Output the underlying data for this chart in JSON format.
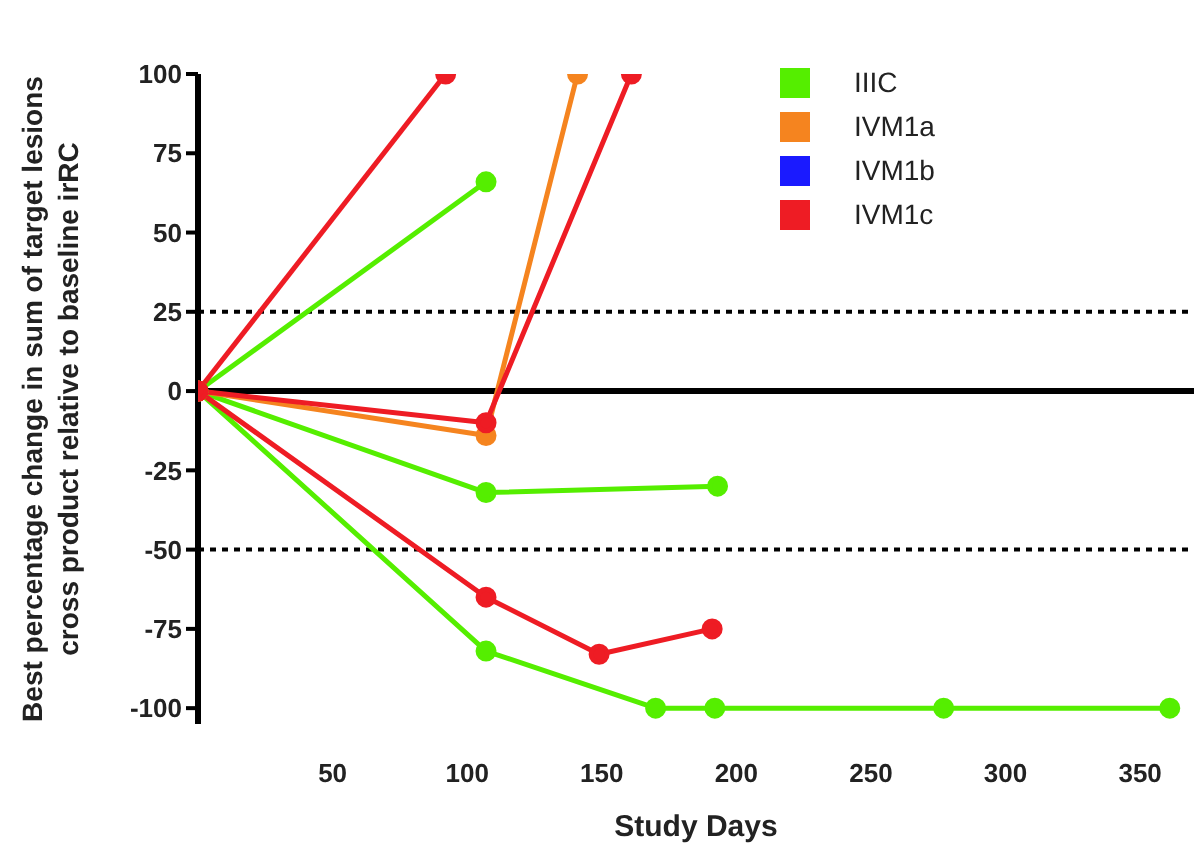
{
  "chart_data": {
    "type": "line",
    "xlabel": "Study Days",
    "ylabel": "Best percentage change in sum of target lesions\ncross product relative to baseline irRC",
    "xlim": [
      0,
      370
    ],
    "xticks": [
      50,
      100,
      150,
      200,
      250,
      300,
      350
    ],
    "ylim": [
      -105,
      100
    ],
    "yticks": [
      -100,
      -75,
      -50,
      -25,
      0,
      25,
      50,
      75,
      100
    ],
    "marker": "circle",
    "legend": "top right",
    "ref_lines": [
      {
        "axis": "y",
        "value": 25,
        "line_style": "dotted",
        "color": "#000000"
      },
      {
        "axis": "y",
        "value": -50,
        "line_style": "dotted",
        "color": "#000000"
      }
    ],
    "series": [
      {
        "name": "IIIC",
        "color": "#55ee00",
        "x": [
          0,
          107
        ],
        "values": [
          0,
          66
        ]
      },
      {
        "color": "#55ee00",
        "x": [
          0,
          107,
          193
        ],
        "values": [
          0,
          -32,
          -30
        ]
      },
      {
        "color": "#55ee00",
        "x": [
          0,
          107,
          170,
          192,
          277,
          361
        ],
        "values": [
          0,
          -82,
          -100,
          -100,
          -100,
          -100
        ]
      },
      {
        "name": "IVM1a",
        "color": "#f5841f",
        "x": [
          0,
          107,
          141
        ],
        "values": [
          0,
          -14,
          100
        ]
      },
      {
        "name": "IVM1b",
        "color": "#1a1aff"
      },
      {
        "name": "IVM1c",
        "color": "#ee1c24",
        "x": [
          0,
          92
        ],
        "values": [
          0,
          100
        ]
      },
      {
        "color": "#ee1c24",
        "x": [
          0,
          107,
          161
        ],
        "values": [
          0,
          -10,
          100
        ]
      },
      {
        "color": "#ee1c24",
        "x": [
          0,
          107,
          149,
          191
        ],
        "values": [
          0,
          -65,
          -83,
          -75
        ]
      }
    ]
  }
}
